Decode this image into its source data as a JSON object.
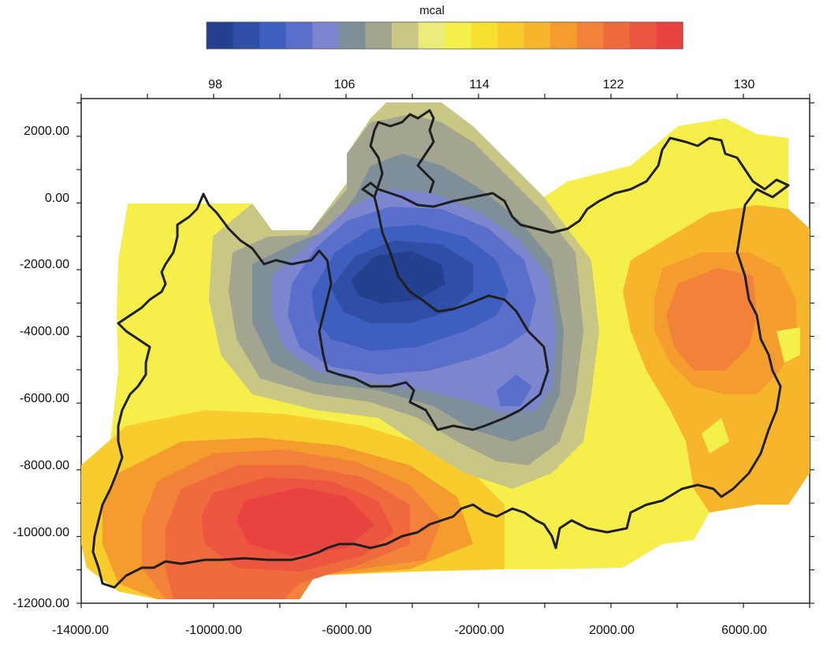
{
  "colorbar": {
    "unit": "mcal",
    "colors": [
      "#23418f",
      "#2f4ea6",
      "#3e5fbf",
      "#5a6fcb",
      "#7b86cf",
      "#7f8f9a",
      "#a3a58e",
      "#c9c786",
      "#ecec7a",
      "#f3f04a",
      "#f7e130",
      "#f8cc2c",
      "#f7b52b",
      "#f59c2e",
      "#f2813a",
      "#ef6a3c",
      "#ec5640",
      "#e9433f"
    ],
    "ticks": [
      {
        "value": 98,
        "label": "98"
      },
      {
        "value": 106,
        "label": "106"
      },
      {
        "value": 114,
        "label": "114"
      },
      {
        "value": 122,
        "label": "122"
      },
      {
        "value": 130,
        "label": "130"
      }
    ]
  },
  "axes": {
    "x_ticks": [
      "-14000.00",
      "-10000.00",
      "-6000.00",
      "-2000.00",
      "2000.00",
      "6000.00"
    ],
    "y_ticks": [
      "2000.00",
      "0.00",
      "-2000.00",
      "-4000.00",
      "-6000.00",
      "-8000.00",
      "-10000.00",
      "-12000.00"
    ]
  }
}
